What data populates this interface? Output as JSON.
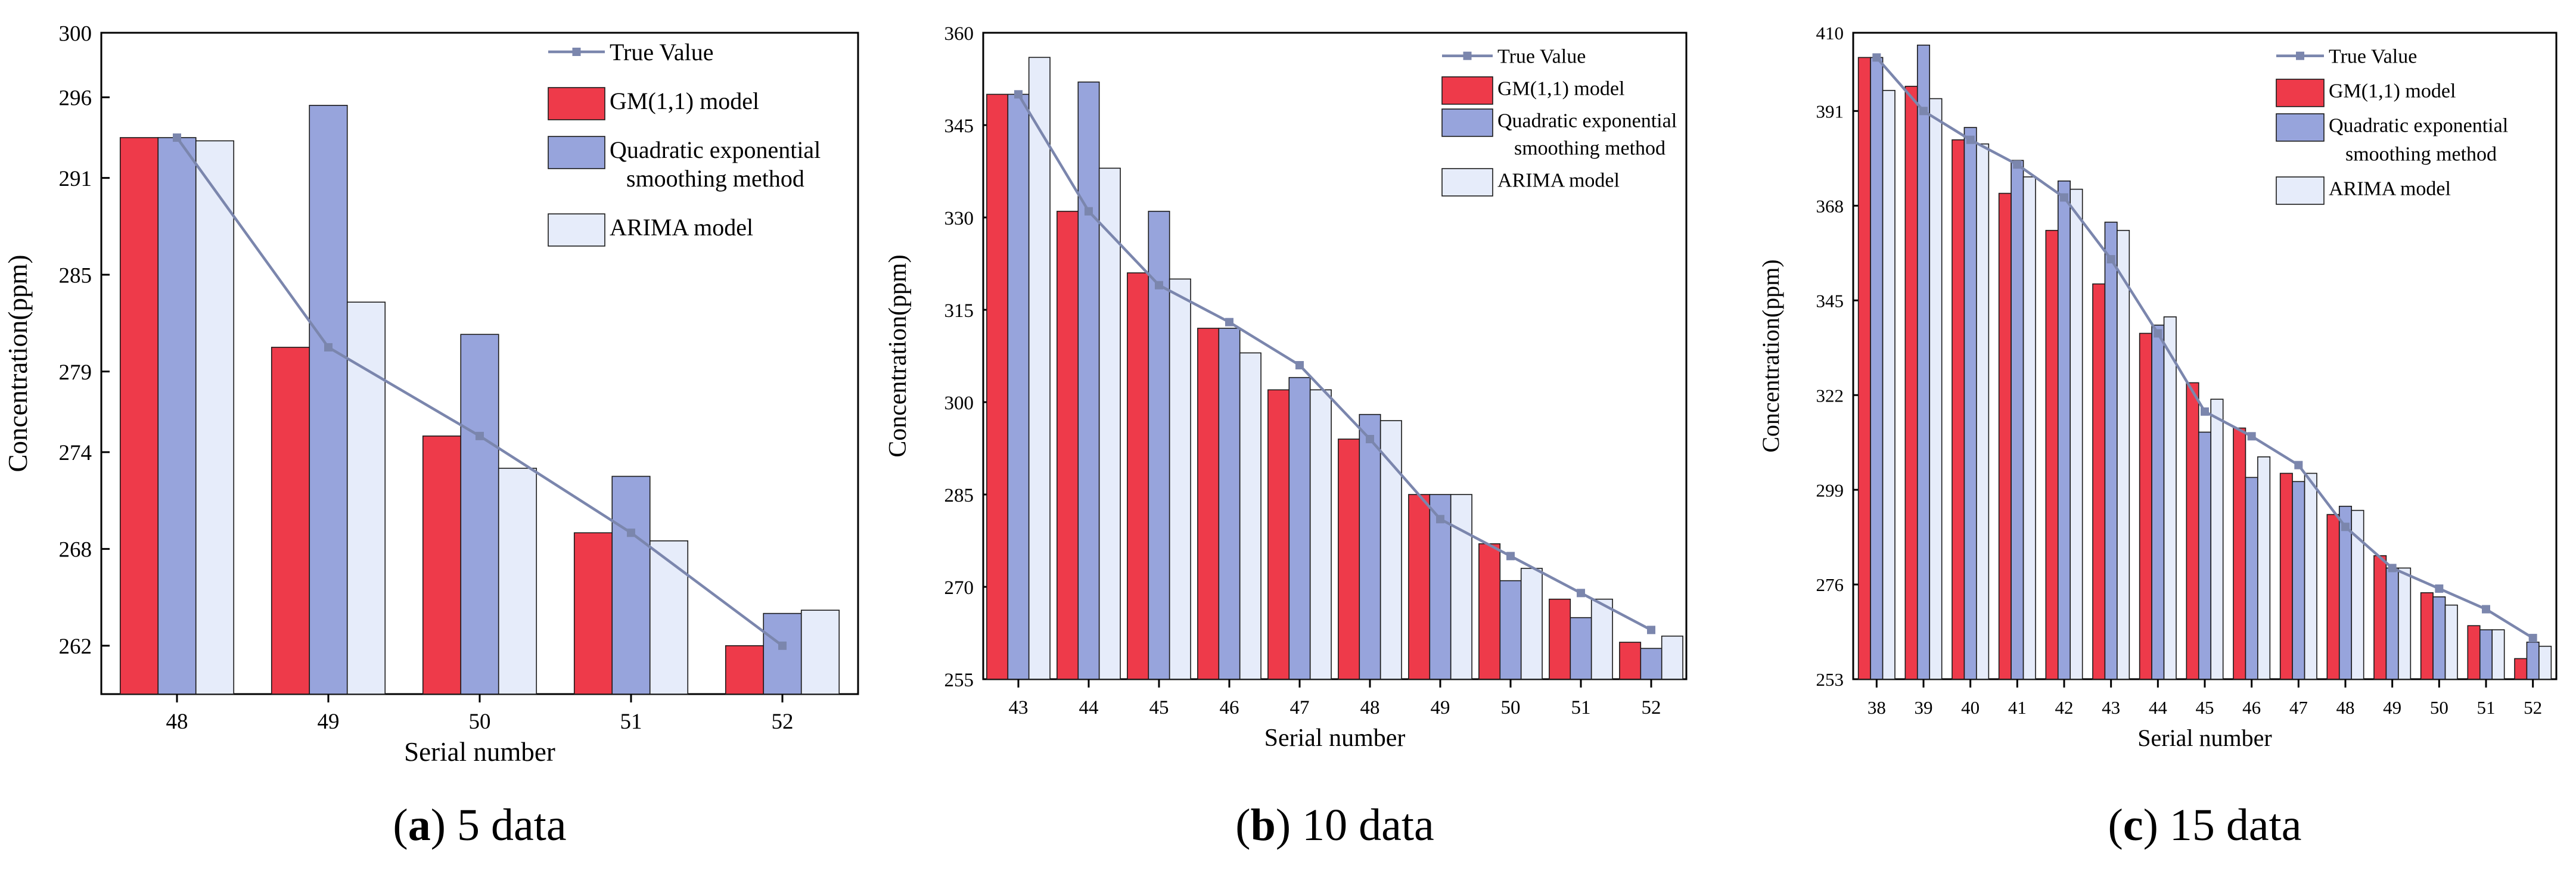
{
  "colors": {
    "gm": "#ee3a4a",
    "qes": "#97a4dc",
    "arima": "#e6ecfa",
    "bar_edge": "#1a1a1a",
    "true_line": "#7b86ad",
    "axis": "#000000"
  },
  "legend": {
    "true_value": "True Value",
    "gm": "GM(1,1) model",
    "qes_line1": "Quadratic exponential",
    "qes_line2": "smoothing method",
    "arima": "ARIMA model"
  },
  "chart_data": [
    {
      "type": "bar",
      "caption_letter": "a",
      "caption_rest": ") 5 data",
      "xlabel": "Serial number",
      "ylabel": "Concentration(ppm)",
      "ylim": [
        259,
        300
      ],
      "yticks": [
        "262",
        "268",
        "274",
        "279",
        "285",
        "291",
        "296",
        "300"
      ],
      "categories": [
        "48",
        "49",
        "50",
        "51",
        "52"
      ],
      "series": [
        {
          "name": "True Value",
          "kind": "line",
          "values": [
            293.5,
            280.5,
            275,
            269,
            262
          ]
        },
        {
          "name": "GM(1,1) model",
          "kind": "bar",
          "values": [
            293.5,
            280.5,
            275,
            269,
            262
          ]
        },
        {
          "name": "Quadratic exponential smoothing method",
          "kind": "bar",
          "values": [
            293.5,
            295.5,
            281.3,
            272.5,
            264
          ]
        },
        {
          "name": "ARIMA model",
          "kind": "bar",
          "values": [
            293.3,
            283.3,
            273,
            268.5,
            264.2
          ]
        }
      ]
    },
    {
      "type": "bar",
      "caption_letter": "b",
      "caption_rest": ") 10 data",
      "xlabel": "Serial number",
      "ylabel": "Concentration(ppm)",
      "ylim": [
        255,
        360
      ],
      "yticks": [
        "255",
        "270",
        "285",
        "300",
        "315",
        "330",
        "345",
        "360"
      ],
      "categories": [
        "43",
        "44",
        "45",
        "46",
        "47",
        "48",
        "49",
        "50",
        "51",
        "52"
      ],
      "series": [
        {
          "name": "True Value",
          "kind": "line",
          "values": [
            350,
            331,
            319,
            313,
            306,
            294,
            281,
            275,
            269,
            263
          ]
        },
        {
          "name": "GM(1,1) model",
          "kind": "bar",
          "values": [
            350,
            331,
            321,
            312,
            302,
            294,
            285,
            277,
            268,
            261
          ]
        },
        {
          "name": "Quadratic exponential smoothing method",
          "kind": "bar",
          "values": [
            350,
            352,
            331,
            312,
            304,
            298,
            285,
            271,
            265,
            260
          ]
        },
        {
          "name": "ARIMA model",
          "kind": "bar",
          "values": [
            356,
            338,
            320,
            308,
            302,
            297,
            285,
            273,
            268,
            262
          ]
        }
      ]
    },
    {
      "type": "bar",
      "caption_letter": "c",
      "caption_rest": ") 15 data",
      "xlabel": "Serial number",
      "ylabel": "Concentration(ppm)",
      "ylim": [
        253,
        410
      ],
      "yticks": [
        "253",
        "276",
        "299",
        "322",
        "345",
        "368",
        "391",
        "410"
      ],
      "categories": [
        "38",
        "39",
        "40",
        "41",
        "42",
        "43",
        "44",
        "45",
        "46",
        "47",
        "48",
        "49",
        "50",
        "51",
        "52"
      ],
      "series": [
        {
          "name": "True Value",
          "kind": "line",
          "values": [
            404,
            391,
            384,
            378,
            370,
            355,
            337,
            318,
            312,
            305,
            290,
            280,
            275,
            270,
            263
          ]
        },
        {
          "name": "GM(1,1) model",
          "kind": "bar",
          "values": [
            404,
            397,
            384,
            371,
            362,
            349,
            337,
            325,
            314,
            303,
            293,
            283,
            274,
            266,
            258
          ]
        },
        {
          "name": "Quadratic exponential smoothing method",
          "kind": "bar",
          "values": [
            404,
            407,
            387,
            379,
            374,
            364,
            339,
            313,
            302,
            301,
            295,
            280,
            273,
            265,
            262
          ]
        },
        {
          "name": "ARIMA model",
          "kind": "bar",
          "values": [
            396,
            394,
            383,
            375,
            372,
            362,
            341,
            321,
            307,
            303,
            294,
            280,
            271,
            265,
            261
          ]
        }
      ]
    }
  ]
}
